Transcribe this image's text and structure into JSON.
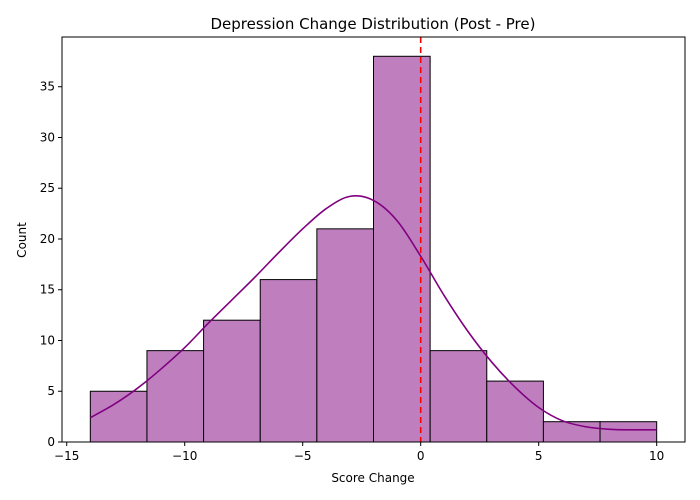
{
  "chart_data": {
    "type": "bar",
    "title": "Depression Change Distribution (Post - Pre)",
    "xlabel": "Score Change",
    "ylabel": "Count",
    "xlim": [
      -15.2,
      11.2
    ],
    "ylim": [
      0,
      39.9
    ],
    "x_ticks": [
      -15,
      -10,
      -5,
      0,
      5,
      10
    ],
    "x_tick_labels": [
      "−15",
      "−10",
      "−5",
      "0",
      "5",
      "10"
    ],
    "y_ticks": [
      0,
      5,
      10,
      15,
      20,
      25,
      30,
      35
    ],
    "y_tick_labels": [
      "0",
      "5",
      "10",
      "15",
      "20",
      "25",
      "30",
      "35"
    ],
    "bins": [
      {
        "x0": -14.0,
        "x1": -11.6,
        "count": 5
      },
      {
        "x0": -11.6,
        "x1": -9.2,
        "count": 9
      },
      {
        "x0": -9.2,
        "x1": -6.8,
        "count": 12
      },
      {
        "x0": -6.8,
        "x1": -4.4,
        "count": 16
      },
      {
        "x0": -4.4,
        "x1": -2.0,
        "count": 21
      },
      {
        "x0": -2.0,
        "x1": 0.4,
        "count": 38
      },
      {
        "x0": 0.4,
        "x1": 2.8,
        "count": 9
      },
      {
        "x0": 2.8,
        "x1": 5.2,
        "count": 6
      },
      {
        "x0": 5.2,
        "x1": 7.6,
        "count": 2
      },
      {
        "x0": 7.6,
        "x1": 10.0,
        "count": 2
      }
    ],
    "kde": {
      "x": [
        -14,
        -13,
        -12,
        -11,
        -10,
        -9,
        -8,
        -7,
        -6,
        -5,
        -4,
        -3,
        -2,
        -1,
        0,
        1,
        2,
        3,
        4,
        5,
        6,
        7,
        8,
        9,
        10
      ],
      "y": [
        2.4,
        3.7,
        5.3,
        7.2,
        9.3,
        11.7,
        14.0,
        16.3,
        18.7,
        21.0,
        23.0,
        24.2,
        23.8,
        21.8,
        18.3,
        14.4,
        10.9,
        7.9,
        5.4,
        3.4,
        2.1,
        1.5,
        1.25,
        1.2,
        1.2
      ]
    },
    "reference_line": {
      "x": 0,
      "style": "dashed"
    },
    "colors": {
      "bar_fill": "#bf7fbf",
      "bar_edge": "#000000",
      "kde_line": "#800080",
      "reference_line": "#ff0000"
    },
    "grid": false,
    "legend": "none"
  }
}
